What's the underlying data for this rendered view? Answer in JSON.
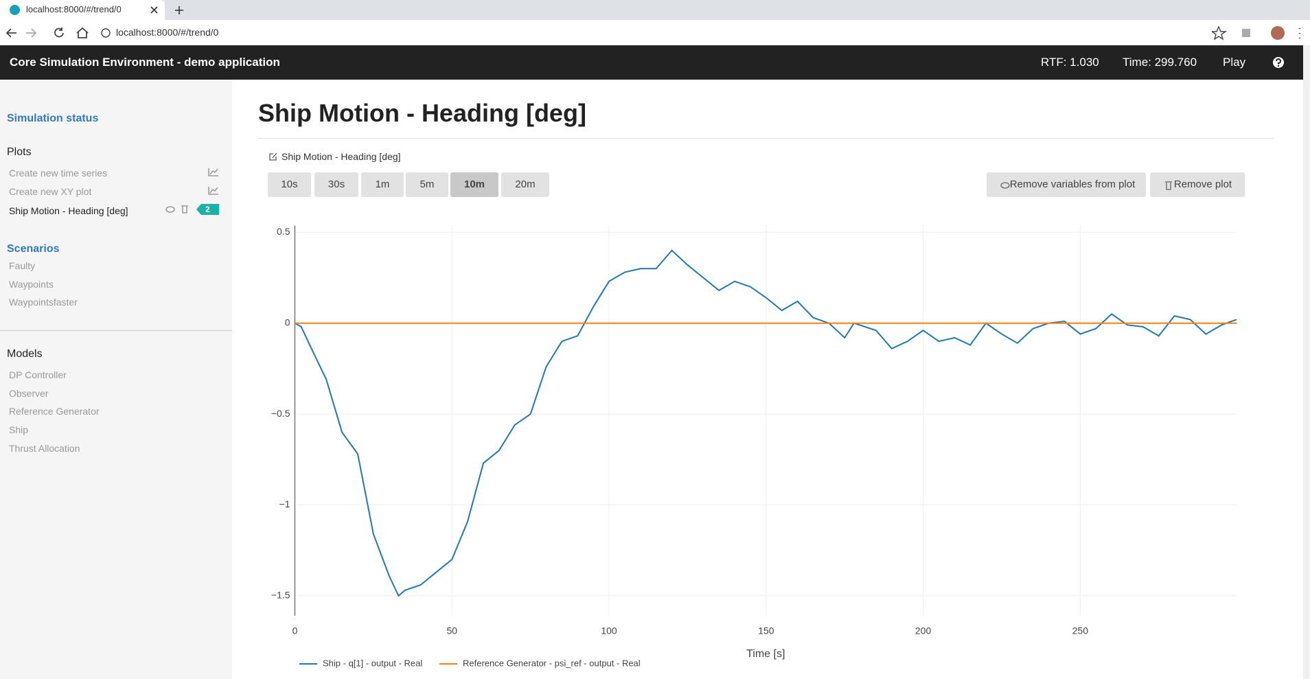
{
  "browser": {
    "tab_title": "localhost:8000/#/trend/0",
    "url": "localhost:8000/#/trend/0"
  },
  "header": {
    "title": "Core Simulation Environment - demo application",
    "rtf": "RTF: 1.030",
    "time": "Time: 299.760",
    "play": "Play"
  },
  "sidebar": {
    "simulation_status": "Simulation status",
    "plots": {
      "heading": "Plots",
      "items": [
        "Create new time series",
        "Create new XY plot",
        "Ship Motion - Heading [deg]"
      ],
      "badge": 2
    },
    "scenarios": {
      "heading": "Scenarios",
      "items": [
        "Faulty",
        "Waypoints",
        "Waypointsfaster"
      ]
    },
    "models": {
      "heading": "Models",
      "items": [
        "DP Controller",
        "Observer",
        "Reference Generator",
        "Ship",
        "Thrust Allocation"
      ]
    }
  },
  "page": {
    "title": "Ship Motion - Heading [deg]",
    "panel_title": "Ship Motion - Heading [deg]",
    "time_buttons": [
      {
        "label": "10s"
      },
      {
        "label": "30s"
      },
      {
        "label": "1m"
      },
      {
        "label": "5m"
      },
      {
        "label": "10m",
        "active": true
      },
      {
        "label": "20m"
      }
    ],
    "actions": [
      "Remove variables from plot",
      "Remove plot"
    ]
  },
  "chart_data": {
    "type": "line",
    "x_label": "Time [s]",
    "xlim": [
      0,
      299.76
    ],
    "ylim": [
      -1.61,
      0.537
    ],
    "xticks": [
      0,
      50,
      100,
      150,
      200,
      250
    ],
    "yticks": [
      {
        "value": -1.5,
        "label": "−1.5"
      },
      {
        "value": -1,
        "label": "−1"
      },
      {
        "value": -0.5,
        "label": "−0.5"
      },
      0,
      0.5
    ],
    "grid": true,
    "series": [
      {
        "name": "Ship - q[1] - output - Real",
        "color": "#1f77b4",
        "x": [
          0,
          2,
          5,
          10,
          15,
          20,
          25,
          30,
          33,
          35,
          40,
          45,
          50,
          55,
          60,
          65,
          70,
          75,
          80,
          85,
          90,
          95,
          100,
          105,
          110,
          115,
          120,
          125,
          130,
          135,
          140,
          145,
          150,
          155,
          160,
          165,
          170,
          175,
          178,
          185,
          190,
          195,
          200,
          205,
          210,
          215,
          220,
          225,
          230,
          235,
          240,
          245,
          250,
          255,
          260,
          265,
          270,
          275,
          280,
          285,
          290,
          295,
          299.76
        ],
        "values": [
          0,
          -0.02,
          -0.13,
          -0.31,
          -0.6,
          -0.72,
          -1.16,
          -1.39,
          -1.5,
          -1.47,
          -1.44,
          -1.37,
          -1.3,
          -1.09,
          -0.77,
          -0.7,
          -0.56,
          -0.5,
          -0.24,
          -0.1,
          -0.07,
          0.09,
          0.23,
          0.28,
          0.3,
          0.3,
          0.4,
          0.32,
          0.25,
          0.18,
          0.23,
          0.2,
          0.14,
          0.07,
          0.12,
          0.03,
          0,
          -0.08,
          0,
          -0.04,
          -0.14,
          -0.1,
          -0.04,
          -0.1,
          -0.08,
          -0.12,
          0,
          -0.06,
          -0.11,
          -0.03,
          0,
          0.01,
          -0.06,
          -0.03,
          0.05,
          -0.01,
          -0.02,
          -0.07,
          0.04,
          0.02,
          -0.06,
          -0.01,
          0.02
        ]
      },
      {
        "name": "Reference Generator - psi_ref - output - Real",
        "color": "#ff7f0e",
        "x": [
          0,
          299.76
        ],
        "values": [
          0,
          0
        ]
      }
    ]
  }
}
